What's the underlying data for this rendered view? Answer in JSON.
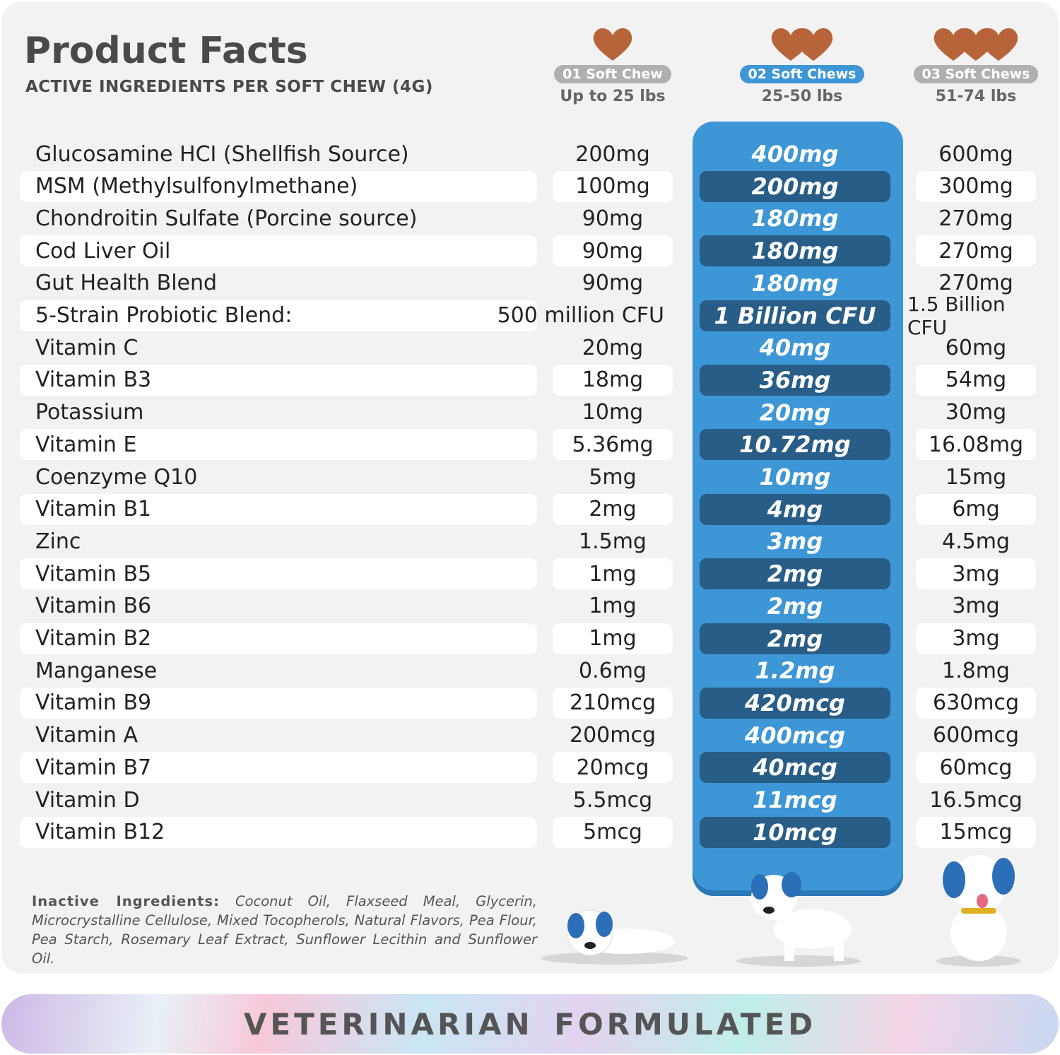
{
  "header": {
    "title": "Product Facts",
    "subtitle": "ACTIVE INGREDIENTS PER SOFT CHEW (4G)"
  },
  "columns": [
    {
      "label": "01 Soft Chew",
      "weight": "Up to 25 lbs",
      "chews": 1,
      "highlighted": false
    },
    {
      "label": "02 Soft Chews",
      "weight": "25-50 lbs",
      "chews": 2,
      "highlighted": true
    },
    {
      "label": "03 Soft Chews",
      "weight": "51-74 lbs",
      "chews": 3,
      "highlighted": false
    }
  ],
  "rows": [
    {
      "name": "Glucosamine HCI (Shellfish Source)",
      "v": [
        "200mg",
        "400mg",
        "600mg"
      ]
    },
    {
      "name": "MSM (Methylsulfonylmethane)",
      "v": [
        "100mg",
        "200mg",
        "300mg"
      ]
    },
    {
      "name": "Chondroitin Sulfate (Porcine source)",
      "v": [
        "90mg",
        "180mg",
        "270mg"
      ]
    },
    {
      "name": "Cod Liver Oil",
      "v": [
        "90mg",
        "180mg",
        "270mg"
      ]
    },
    {
      "name": "Gut Health Blend",
      "v": [
        "90mg",
        "180mg",
        "270mg"
      ]
    },
    {
      "name": "5-Strain Probiotic Blend:",
      "v": [
        "500 million CFU",
        "1 Billion CFU",
        "1.5 Billion CFU"
      ]
    },
    {
      "name": "Vitamin C",
      "v": [
        "20mg",
        "40mg",
        "60mg"
      ]
    },
    {
      "name": "Vitamin B3",
      "v": [
        "18mg",
        "36mg",
        "54mg"
      ]
    },
    {
      "name": "Potassium",
      "v": [
        "10mg",
        "20mg",
        "30mg"
      ]
    },
    {
      "name": "Vitamin E",
      "v": [
        "5.36mg",
        "10.72mg",
        "16.08mg"
      ]
    },
    {
      "name": "Coenzyme Q10",
      "v": [
        "5mg",
        "10mg",
        "15mg"
      ]
    },
    {
      "name": "Vitamin B1",
      "v": [
        "2mg",
        "4mg",
        "6mg"
      ]
    },
    {
      "name": "Zinc",
      "v": [
        "1.5mg",
        "3mg",
        "4.5mg"
      ]
    },
    {
      "name": "Vitamin B5",
      "v": [
        "1mg",
        "2mg",
        "3mg"
      ]
    },
    {
      "name": "Vitamin B6",
      "v": [
        "1mg",
        "2mg",
        "3mg"
      ]
    },
    {
      "name": "Vitamin B2",
      "v": [
        "1mg",
        "2mg",
        "3mg"
      ]
    },
    {
      "name": "Manganese",
      "v": [
        "0.6mg",
        "1.2mg",
        "1.8mg"
      ]
    },
    {
      "name": "Vitamin B9",
      "v": [
        "210mcg",
        "420mcg",
        "630mcg"
      ]
    },
    {
      "name": "Vitamin A",
      "v": [
        "200mcg",
        "400mcg",
        "600mcg"
      ]
    },
    {
      "name": "Vitamin B7",
      "v": [
        "20mcg",
        "40mcg",
        "60mcg"
      ]
    },
    {
      "name": "Vitamin D",
      "v": [
        "5.5mcg",
        "11mcg",
        "16.5mcg"
      ]
    },
    {
      "name": "Vitamin B12",
      "v": [
        "5mcg",
        "10mcg",
        "15mcg"
      ]
    }
  ],
  "inactive": {
    "label": "Inactive Ingredients:",
    "text": "Coconut Oil, Flaxseed Meal, Glycerin, Microcrystalline Cellulose, Mixed Tocopherols, Natural Flavors, Pea Flour, Pea Starch, Rosemary Leaf Extract, Sunflower Lecithin and Sunflower Oil."
  },
  "banner": "VETERINARIAN FORMULATED",
  "colors": {
    "accent": "#3d96d6",
    "accent_dark": "#285d87",
    "chew": "#b8643a",
    "panel": "#f2f2f2"
  }
}
